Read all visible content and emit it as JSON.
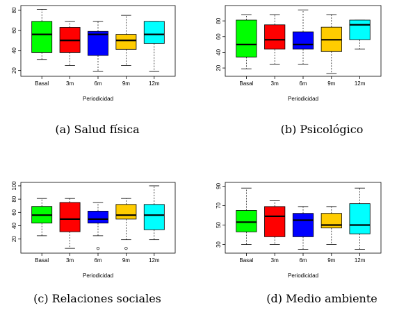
{
  "figure": {
    "panels": [
      {
        "caption": "(a) Salud física"
      },
      {
        "caption": "(b) Psicológico"
      },
      {
        "caption": "(c) Relaciones sociales"
      },
      {
        "caption": "(d) Medio ambiente"
      }
    ]
  },
  "chart_data": [
    {
      "type": "box",
      "xlabel": "Periodicidad",
      "ylabel": "",
      "categories": [
        "Basal",
        "3m",
        "6m",
        "9m",
        "12m"
      ],
      "colors": [
        "#00ff00",
        "#ff0000",
        "#0000ff",
        "#ffcc00",
        "#00ffff"
      ],
      "ylim": [
        17,
        82
      ],
      "yticks": [
        20,
        40,
        60,
        80
      ],
      "grid": false,
      "boxes": [
        {
          "whisker_low": 31,
          "q1": 38,
          "median": 56,
          "q3": 69,
          "whisker_high": 81,
          "outliers": []
        },
        {
          "whisker_low": 25,
          "q1": 38,
          "median": 50,
          "q3": 63,
          "whisker_high": 69,
          "outliers": []
        },
        {
          "whisker_low": 19,
          "q1": 35,
          "median": 56,
          "q3": 59,
          "whisker_high": 69,
          "outliers": []
        },
        {
          "whisker_low": 25,
          "q1": 41,
          "median": 50,
          "q3": 56,
          "whisker_high": 75,
          "outliers": []
        },
        {
          "whisker_low": 19,
          "q1": 47,
          "median": 56,
          "q3": 69,
          "whisker_high": 69,
          "outliers": []
        }
      ]
    },
    {
      "type": "box",
      "xlabel": "Periodicidad",
      "ylabel": "",
      "categories": [
        "Basal",
        "3m",
        "6m",
        "9m",
        "12m"
      ],
      "colors": [
        "#00ff00",
        "#ff0000",
        "#0000ff",
        "#ffcc00",
        "#00ffff"
      ],
      "ylim": [
        13,
        96
      ],
      "yticks": [
        20,
        40,
        60,
        80
      ],
      "grid": false,
      "boxes": [
        {
          "whisker_low": 19,
          "q1": 34,
          "median": 50,
          "q3": 81,
          "whisker_high": 88,
          "outliers": []
        },
        {
          "whisker_low": 25,
          "q1": 44,
          "median": 56,
          "q3": 75,
          "whisker_high": 88,
          "outliers": []
        },
        {
          "whisker_low": 25,
          "q1": 44,
          "median": 50,
          "q3": 66,
          "whisker_high": 94,
          "outliers": []
        },
        {
          "whisker_low": 13,
          "q1": 41,
          "median": 56,
          "q3": 72,
          "whisker_high": 88,
          "outliers": []
        },
        {
          "whisker_low": 44,
          "q1": 56,
          "median": 75,
          "q3": 81,
          "whisker_high": 81,
          "outliers": []
        }
      ]
    },
    {
      "type": "box",
      "xlabel": "Periodicidad",
      "ylabel": "",
      "categories": [
        "Basal",
        "3m",
        "6m",
        "9m",
        "12m"
      ],
      "colors": [
        "#00ff00",
        "#ff0000",
        "#0000ff",
        "#ffcc00",
        "#00ffff"
      ],
      "ylim": [
        3,
        101
      ],
      "yticks": [
        20,
        40,
        60,
        80,
        100
      ],
      "grid": false,
      "boxes": [
        {
          "whisker_low": 25,
          "q1": 44,
          "median": 56,
          "q3": 69,
          "whisker_high": 81,
          "outliers": []
        },
        {
          "whisker_low": 6,
          "q1": 31,
          "median": 50,
          "q3": 75,
          "whisker_high": 81,
          "outliers": []
        },
        {
          "whisker_low": 25,
          "q1": 44,
          "median": 50,
          "q3": 62,
          "whisker_high": 75,
          "outliers": [
            6
          ]
        },
        {
          "whisker_low": 19,
          "q1": 50,
          "median": 56,
          "q3": 72,
          "whisker_high": 81,
          "outliers": [
            6
          ]
        },
        {
          "whisker_low": 19,
          "q1": 34,
          "median": 56,
          "q3": 72,
          "whisker_high": 100,
          "outliers": []
        }
      ]
    },
    {
      "type": "box",
      "xlabel": "Periodicidad",
      "ylabel": "",
      "categories": [
        "Basal",
        "3m",
        "6m",
        "9m",
        "12m"
      ],
      "colors": [
        "#00ff00",
        "#ff0000",
        "#0000ff",
        "#ffcc00",
        "#00ffff"
      ],
      "ylim": [
        24,
        91
      ],
      "yticks": [
        30,
        50,
        70,
        90
      ],
      "grid": false,
      "boxes": [
        {
          "whisker_low": 30,
          "q1": 43,
          "median": 53,
          "q3": 65,
          "whisker_high": 88,
          "outliers": []
        },
        {
          "whisker_low": 30,
          "q1": 38,
          "median": 59,
          "q3": 69,
          "whisker_high": 75,
          "outliers": []
        },
        {
          "whisker_low": 25,
          "q1": 38,
          "median": 55,
          "q3": 62,
          "whisker_high": 69,
          "outliers": []
        },
        {
          "whisker_low": 30,
          "q1": 47,
          "median": 50,
          "q3": 62,
          "whisker_high": 69,
          "outliers": []
        },
        {
          "whisker_low": 25,
          "q1": 41,
          "median": 50,
          "q3": 72,
          "whisker_high": 88,
          "outliers": []
        }
      ]
    }
  ]
}
